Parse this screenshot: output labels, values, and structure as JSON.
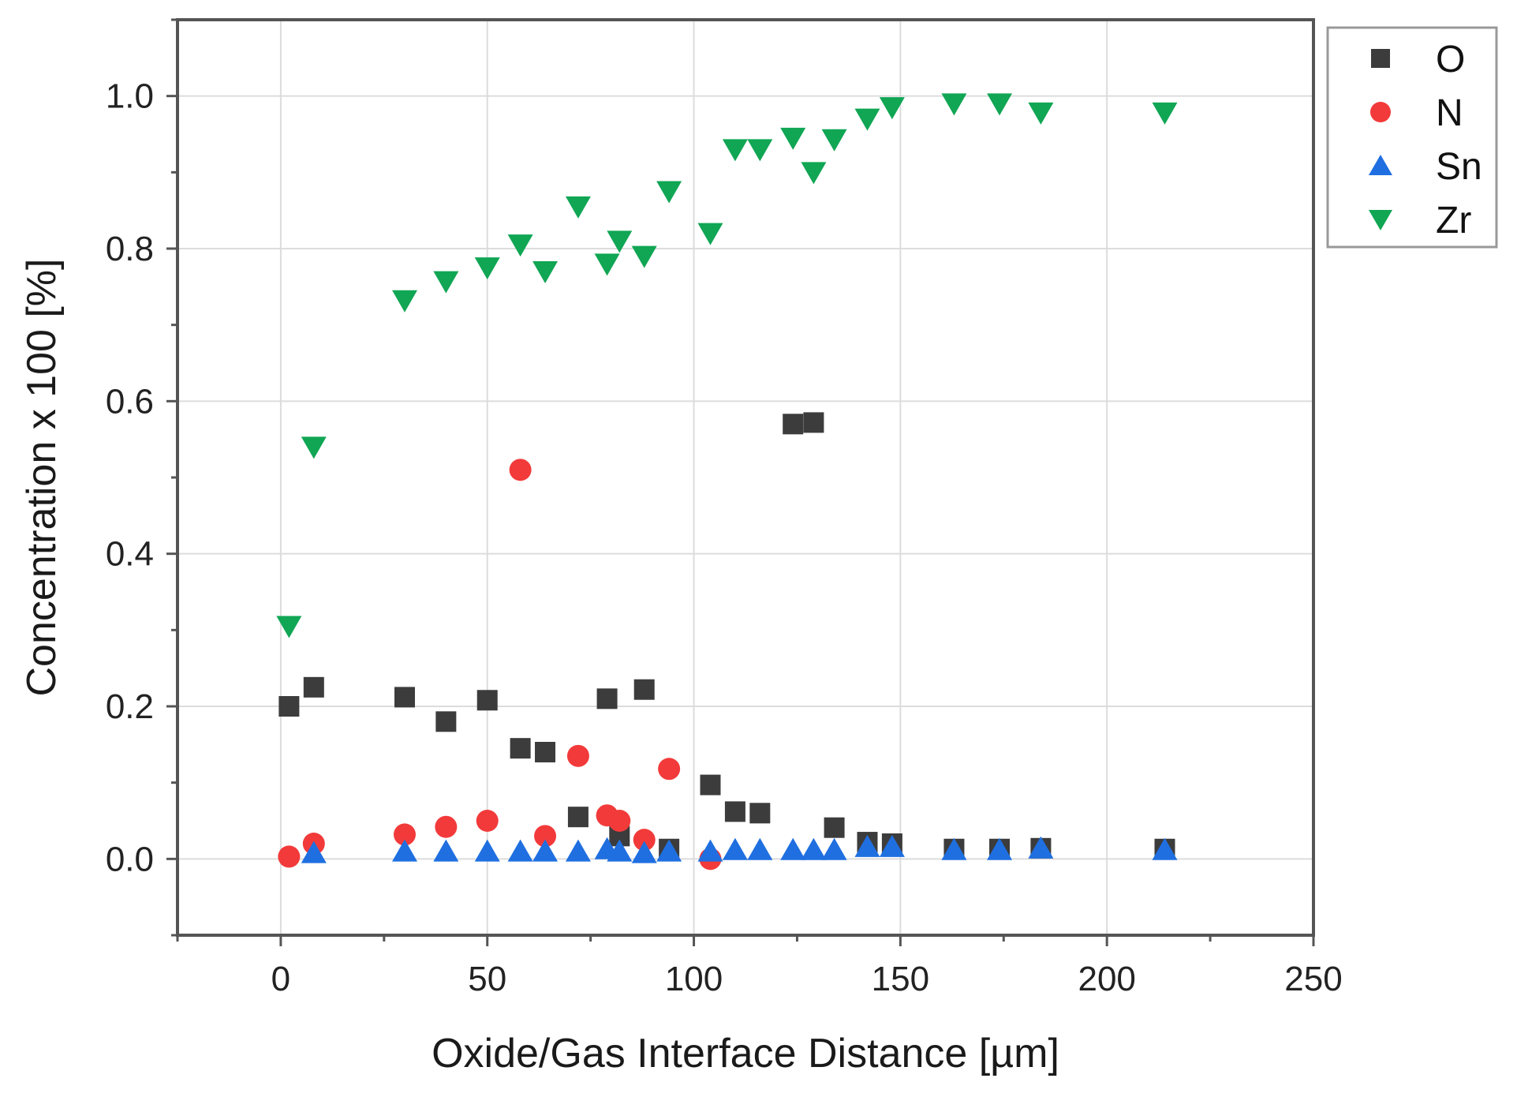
{
  "chart_data": {
    "type": "scatter",
    "title": "",
    "xlabel": "Oxide/Gas Interface Distance [µm]",
    "ylabel": "Concentration x 100 [%]",
    "xlim": [
      -25,
      250
    ],
    "ylim": [
      -0.1,
      1.1
    ],
    "xticks": [
      0,
      50,
      100,
      150,
      200,
      250
    ],
    "xtick_labels": [
      "0",
      "50",
      "100",
      "150",
      "200",
      "250"
    ],
    "yticks": [
      0.0,
      0.2,
      0.4,
      0.6,
      0.8,
      1.0
    ],
    "ytick_labels": [
      "0.0",
      "0.2",
      "0.4",
      "0.6",
      "0.8",
      "1.0"
    ],
    "grid": true,
    "legend_position": "top-right",
    "series": [
      {
        "name": "O",
        "marker": "square",
        "color": "#3c3c3c",
        "points": [
          [
            2,
            0.2
          ],
          [
            8,
            0.225
          ],
          [
            30,
            0.212
          ],
          [
            40,
            0.18
          ],
          [
            50,
            0.208
          ],
          [
            58,
            0.145
          ],
          [
            64,
            0.14
          ],
          [
            72,
            0.055
          ],
          [
            79,
            0.21
          ],
          [
            82,
            0.03
          ],
          [
            88,
            0.222
          ],
          [
            94,
            0.013
          ],
          [
            104,
            0.097
          ],
          [
            110,
            0.062
          ],
          [
            116,
            0.06
          ],
          [
            124,
            0.57
          ],
          [
            129,
            0.572
          ],
          [
            134,
            0.041
          ],
          [
            142,
            0.022
          ],
          [
            148,
            0.02
          ],
          [
            163,
            0.013
          ],
          [
            174,
            0.013
          ],
          [
            184,
            0.014
          ],
          [
            214,
            0.013
          ]
        ]
      },
      {
        "name": "N",
        "marker": "circle",
        "color": "#f23a3a",
        "points": [
          [
            2,
            0.003
          ],
          [
            8,
            0.02
          ],
          [
            30,
            0.032
          ],
          [
            40,
            0.042
          ],
          [
            50,
            0.05
          ],
          [
            58,
            0.51
          ],
          [
            64,
            0.03
          ],
          [
            72,
            0.135
          ],
          [
            79,
            0.057
          ],
          [
            82,
            0.05
          ],
          [
            88,
            0.025
          ],
          [
            94,
            0.118
          ],
          [
            104,
            0.0
          ]
        ]
      },
      {
        "name": "Sn",
        "marker": "triangle-up",
        "color": "#1f6fe0",
        "points": [
          [
            8,
            0.008
          ],
          [
            30,
            0.01
          ],
          [
            40,
            0.01
          ],
          [
            50,
            0.01
          ],
          [
            58,
            0.01
          ],
          [
            64,
            0.01
          ],
          [
            72,
            0.01
          ],
          [
            79,
            0.013
          ],
          [
            82,
            0.01
          ],
          [
            88,
            0.008
          ],
          [
            94,
            0.01
          ],
          [
            104,
            0.01
          ],
          [
            110,
            0.012
          ],
          [
            116,
            0.012
          ],
          [
            124,
            0.012
          ],
          [
            129,
            0.012
          ],
          [
            134,
            0.012
          ],
          [
            142,
            0.016
          ],
          [
            148,
            0.016
          ],
          [
            163,
            0.012
          ],
          [
            174,
            0.012
          ],
          [
            184,
            0.014
          ],
          [
            214,
            0.012
          ]
        ]
      },
      {
        "name": "Zr",
        "marker": "triangle-down",
        "color": "#10a654",
        "points": [
          [
            2,
            0.305
          ],
          [
            8,
            0.54
          ],
          [
            30,
            0.732
          ],
          [
            40,
            0.757
          ],
          [
            50,
            0.775
          ],
          [
            58,
            0.805
          ],
          [
            64,
            0.77
          ],
          [
            72,
            0.855
          ],
          [
            79,
            0.78
          ],
          [
            82,
            0.81
          ],
          [
            88,
            0.79
          ],
          [
            94,
            0.875
          ],
          [
            104,
            0.82
          ],
          [
            110,
            0.93
          ],
          [
            116,
            0.93
          ],
          [
            124,
            0.945
          ],
          [
            129,
            0.9
          ],
          [
            134,
            0.943
          ],
          [
            142,
            0.97
          ],
          [
            148,
            0.985
          ],
          [
            163,
            0.99
          ],
          [
            174,
            0.99
          ],
          [
            184,
            0.978
          ],
          [
            214,
            0.978
          ]
        ]
      }
    ]
  }
}
